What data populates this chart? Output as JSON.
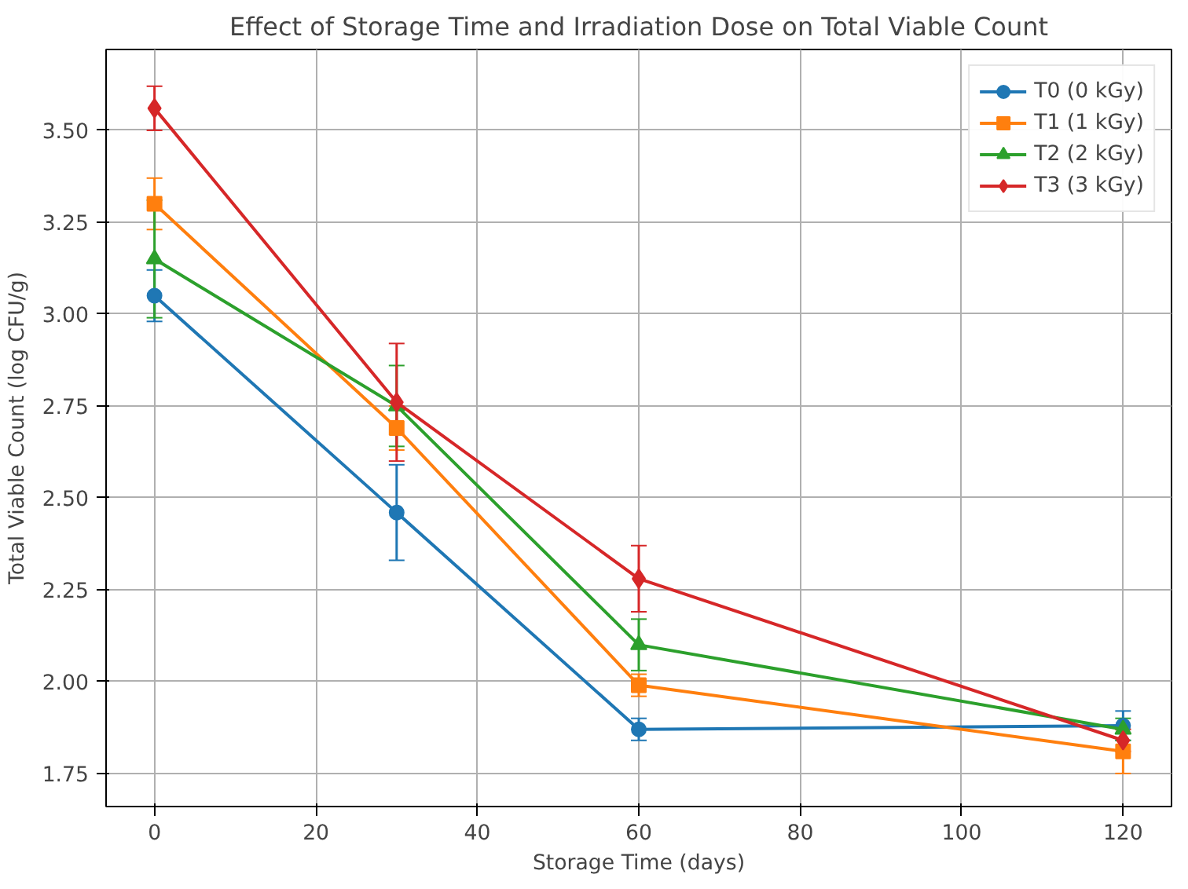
{
  "chart_data": {
    "type": "line",
    "title": "Effect of Storage Time and Irradiation Dose on Total Viable Count",
    "xlabel": "Storage Time (days)",
    "ylabel": "Total Viable Count (log CFU/g)",
    "x": [
      0,
      30,
      60,
      120
    ],
    "series": [
      {
        "name": "T0 (0 kGy)",
        "color": "#1f77b4",
        "marker": "circle",
        "values": [
          3.05,
          2.46,
          1.87,
          1.88
        ],
        "errors": [
          0.07,
          0.13,
          0.03,
          0.04
        ]
      },
      {
        "name": "T1 (1 kGy)",
        "color": "#ff7f0e",
        "marker": "square",
        "values": [
          3.3,
          2.69,
          1.99,
          1.81
        ],
        "errors": [
          0.07,
          0.06,
          0.03,
          0.06
        ]
      },
      {
        "name": "T2 (2 kGy)",
        "color": "#2ca02c",
        "marker": "triangle",
        "values": [
          3.15,
          2.75,
          2.1,
          1.87
        ],
        "errors": [
          0.16,
          0.11,
          0.07,
          0.03
        ]
      },
      {
        "name": "T3 (3 kGy)",
        "color": "#d62728",
        "marker": "diamond",
        "values": [
          3.56,
          2.76,
          2.28,
          1.84
        ],
        "errors": [
          0.06,
          0.16,
          0.09,
          0.03
        ]
      }
    ],
    "xlim": [
      -6,
      126
    ],
    "ylim": [
      1.66,
      3.72
    ],
    "xticks": [
      0,
      20,
      40,
      60,
      80,
      100,
      120
    ],
    "yticks": [
      {
        "value": 1.75,
        "label": "1.75"
      },
      {
        "value": 2.0,
        "label": "2.00"
      },
      {
        "value": 2.25,
        "label": "2.25"
      },
      {
        "value": 2.5,
        "label": "2.50"
      },
      {
        "value": 2.75,
        "label": "2.75"
      },
      {
        "value": 3.0,
        "label": "3.00"
      },
      {
        "value": 3.25,
        "label": "3.25"
      },
      {
        "value": 3.5,
        "label": "3.50"
      }
    ],
    "grid": true,
    "legend": "top right",
    "line_style": "solid"
  }
}
